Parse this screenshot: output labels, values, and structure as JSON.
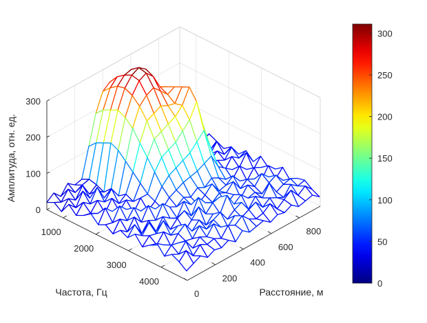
{
  "chart_data": {
    "type": "mesh3d",
    "xlabel": "Частота, Гц",
    "ylabel": "Расстояние, м",
    "zlabel": "Амплитуда, отн. ед.",
    "xlim": [
      500,
      4800
    ],
    "ylim": [
      0,
      950
    ],
    "zlim": [
      0,
      300
    ],
    "xticks": [
      1000,
      2000,
      3000,
      4000
    ],
    "yticks": [
      0,
      200,
      400,
      600,
      800
    ],
    "zticks": [
      0,
      100,
      200,
      300
    ],
    "colormap": "jet",
    "clim": [
      0,
      311
    ],
    "colorbar_ticks": [
      0,
      50,
      100,
      150,
      200,
      250,
      300
    ],
    "grid": true,
    "frequency": [
      500,
      725,
      950,
      1175,
      1400,
      1625,
      1850,
      2075,
      2300,
      2525,
      2750,
      2975,
      3200,
      3425,
      3650,
      3875,
      4100,
      4325,
      4550,
      4775
    ],
    "distance": [
      0,
      50,
      100,
      150,
      200,
      250,
      300,
      350,
      400,
      450,
      500,
      550,
      600,
      650,
      700,
      750,
      800,
      850,
      900,
      950
    ],
    "amplitude": [
      [
        20,
        35,
        15,
        40,
        25,
        30,
        110,
        190,
        240,
        255,
        245,
        250,
        230,
        180,
        100,
        35,
        20,
        45,
        25,
        15
      ],
      [
        30,
        20,
        45,
        25,
        35,
        40,
        130,
        210,
        260,
        280,
        270,
        265,
        240,
        200,
        120,
        40,
        30,
        20,
        35,
        25
      ],
      [
        15,
        40,
        25,
        55,
        20,
        35,
        140,
        220,
        275,
        295,
        300,
        285,
        250,
        215,
        130,
        45,
        25,
        50,
        20,
        30
      ],
      [
        45,
        25,
        60,
        30,
        40,
        25,
        150,
        230,
        280,
        305,
        315,
        300,
        260,
        230,
        140,
        50,
        35,
        30,
        40,
        20
      ],
      [
        25,
        50,
        35,
        70,
        30,
        45,
        140,
        220,
        270,
        300,
        310,
        290,
        250,
        240,
        150,
        40,
        55,
        25,
        35,
        45
      ],
      [
        35,
        30,
        55,
        40,
        65,
        35,
        120,
        200,
        250,
        270,
        280,
        260,
        240,
        250,
        170,
        60,
        30,
        45,
        20,
        35
      ],
      [
        50,
        40,
        30,
        60,
        35,
        50,
        100,
        170,
        220,
        230,
        240,
        230,
        225,
        260,
        180,
        55,
        40,
        30,
        55,
        25
      ],
      [
        30,
        65,
        45,
        35,
        55,
        40,
        80,
        140,
        180,
        190,
        200,
        210,
        230,
        270,
        190,
        60,
        35,
        50,
        30,
        40
      ],
      [
        40,
        35,
        70,
        50,
        30,
        60,
        60,
        110,
        140,
        150,
        160,
        180,
        200,
        240,
        160,
        50,
        45,
        35,
        60,
        30
      ],
      [
        25,
        55,
        40,
        65,
        45,
        35,
        50,
        80,
        100,
        110,
        120,
        130,
        150,
        170,
        110,
        45,
        30,
        55,
        40,
        50
      ],
      [
        45,
        30,
        60,
        35,
        70,
        50,
        40,
        60,
        70,
        80,
        85,
        90,
        100,
        110,
        70,
        55,
        40,
        35,
        65,
        30
      ],
      [
        35,
        60,
        25,
        50,
        40,
        75,
        55,
        45,
        60,
        50,
        65,
        55,
        70,
        60,
        45,
        35,
        60,
        40,
        30,
        55
      ],
      [
        55,
        40,
        65,
        30,
        60,
        45,
        35,
        70,
        50,
        40,
        55,
        75,
        45,
        50,
        65,
        40,
        30,
        55,
        45,
        35
      ],
      [
        30,
        50,
        45,
        70,
        35,
        55,
        65,
        40,
        80,
        55,
        45,
        60,
        50,
        70,
        40,
        55,
        45,
        30,
        60,
        40
      ],
      [
        45,
        35,
        60,
        40,
        55,
        30,
        50,
        75,
        45,
        65,
        70,
        40,
        55,
        35,
        60,
        45,
        70,
        50,
        35,
        55
      ],
      [
        60,
        45,
        30,
        55,
        70,
        40,
        60,
        35,
        55,
        45,
        85,
        50,
        65,
        45,
        50,
        35,
        55,
        65,
        40,
        30
      ],
      [
        35,
        55,
        50,
        45,
        40,
        65,
        45,
        60,
        70,
        40,
        55,
        65,
        35,
        60,
        45,
        75,
        40,
        50,
        55,
        45
      ],
      [
        50,
        40,
        65,
        35,
        55,
        45,
        70,
        50,
        40,
        60,
        45,
        55,
        65,
        40,
        55,
        45,
        35,
        60,
        45,
        50
      ],
      [
        40,
        60,
        35,
        55,
        45,
        50,
        40,
        65,
        55,
        70,
        50,
        40,
        45,
        60,
        35,
        50,
        65,
        40,
        55,
        35
      ],
      [
        25,
        35,
        45,
        30,
        40,
        35,
        45,
        30,
        50,
        35,
        40,
        45,
        30,
        40,
        35,
        45,
        30,
        35,
        40,
        25
      ]
    ]
  }
}
